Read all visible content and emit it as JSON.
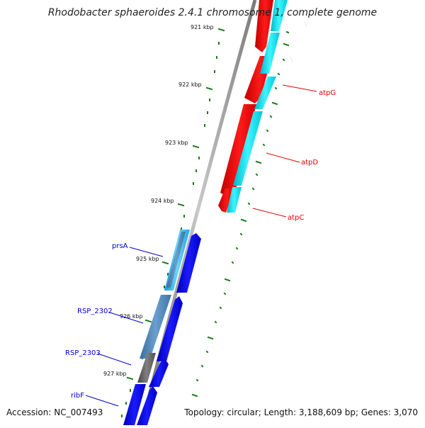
{
  "title": "Rhodobacter sphaeroides 2.4.1 chromosome 1, complete genome",
  "accession": "Accession: NC_007493",
  "summary": "Topology: circular; Length: 3,188,609 bp; Genes: 3,070",
  "colors": {
    "backbone": "#8a8a8a",
    "gene_label_red": "#e00000",
    "gene_label_blue": "#0000cc",
    "gene_red": "#ff0000",
    "gene_cyan": "#00e5ee",
    "gene_blue": "#0000ee",
    "gene_steel": "#4682b4",
    "gene_gray": "#666666",
    "gene_lightblue": "#33bbee",
    "tick": "#1a7a1a"
  },
  "scale_labels": [
    "921 kbp",
    "922 kbp",
    "923 kbp",
    "924 kbp",
    "925 kbp",
    "926 kbp",
    "927 kbp"
  ],
  "gene_labels": [
    "atpG",
    "atpD",
    "atpC",
    "prsA",
    "RSP_2302",
    "RSP_2303",
    "ribF"
  ]
}
